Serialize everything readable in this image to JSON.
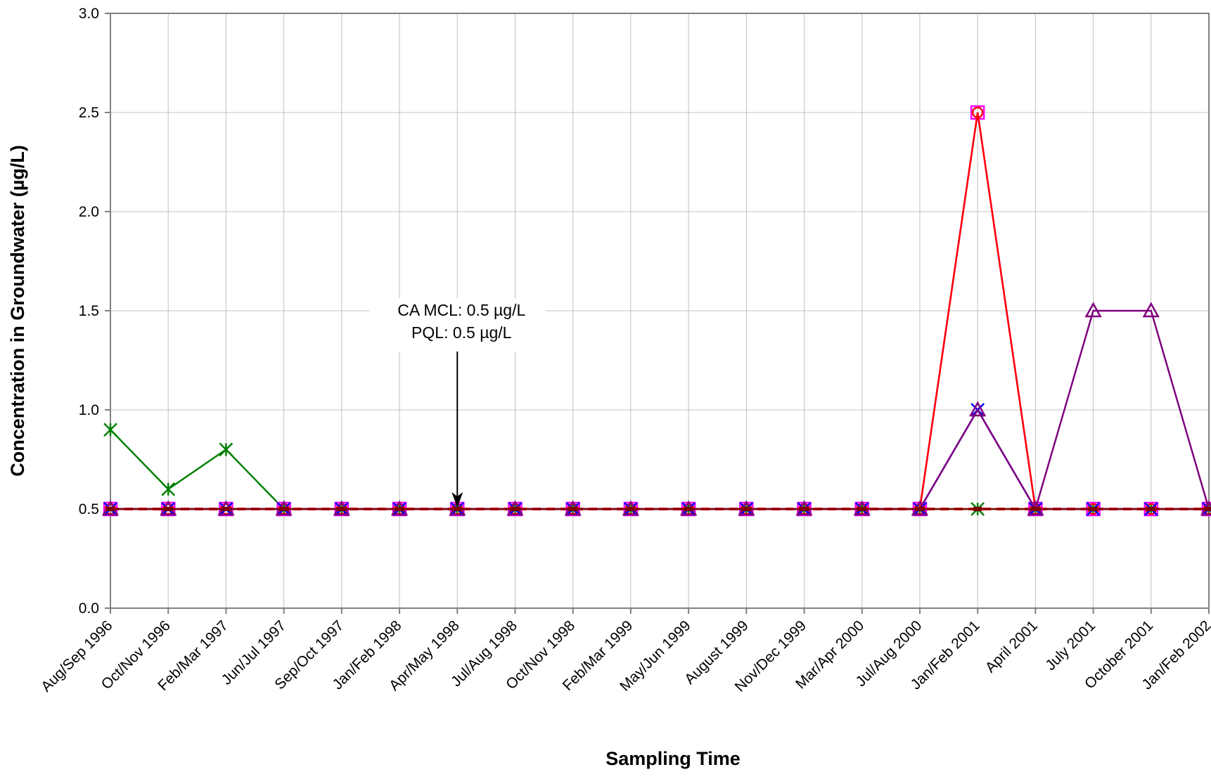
{
  "chart_data": {
    "type": "line",
    "xlabel": "Sampling Time",
    "ylabel": "Concentration in Groundwater (µg/L)",
    "ylim": [
      0,
      3.0
    ],
    "y_ticks": [
      "0.0",
      "0.5",
      "1.0",
      "1.5",
      "2.0",
      "2.5",
      "3.0"
    ],
    "grid": true,
    "categories": [
      "Aug/Sep 1996",
      "Oct/Nov 1996",
      "Feb/Mar 1997",
      "Jun/Jul 1997",
      "Sep/Oct 1997",
      "Jan/Feb 1998",
      "Apr/May 1998",
      "Jul/Aug 1998",
      "Oct/Nov 1998",
      "Feb/Mar 1999",
      "May/Jun 1999",
      "August 1999",
      "Nov/Dec 1999",
      "Mar/Apr 2000",
      "Jul/Aug 2000",
      "Jan/Feb 2001",
      "April 2001",
      "July 2001",
      "October 2001",
      "Jan/Feb 2002"
    ],
    "annotation": {
      "lines": [
        "CA MCL: 0.5 µg/L",
        "PQL: 0.5 µg/L"
      ],
      "points_to": "Apr/May 1998",
      "value": 0.5
    },
    "series": [
      {
        "color": "#008000",
        "marker": "star",
        "values": [
          0.9,
          0.6,
          0.8,
          0.5,
          0.5,
          0.5,
          0.5,
          0.5,
          0.5,
          0.5,
          0.5,
          0.5,
          0.5,
          0.5,
          0.5,
          0.5,
          0.5,
          0.5,
          0.5,
          0.5
        ]
      },
      {
        "color": "#ff00ff",
        "marker": "square",
        "values": [
          0.5,
          0.5,
          0.5,
          0.5,
          0.5,
          0.5,
          0.5,
          0.5,
          0.5,
          0.5,
          0.5,
          0.5,
          0.5,
          0.5,
          0.5,
          2.5,
          0.5,
          0.5,
          0.5,
          0.5
        ]
      },
      {
        "color": "#ff0000",
        "marker": "circle",
        "values": [
          0.5,
          0.5,
          0.5,
          0.5,
          0.5,
          0.5,
          0.5,
          0.5,
          0.5,
          0.5,
          0.5,
          0.5,
          0.5,
          0.5,
          0.5,
          2.5,
          0.5,
          0.5,
          0.5,
          0.5
        ]
      },
      {
        "color": "#0000ff",
        "marker": "x",
        "values": [
          0.5,
          0.5,
          0.5,
          0.5,
          0.5,
          0.5,
          0.5,
          0.5,
          0.5,
          0.5,
          0.5,
          0.5,
          0.5,
          0.5,
          0.5,
          1.0,
          0.5,
          0.5,
          0.5,
          0.5
        ]
      },
      {
        "color": "#800080",
        "marker": "triangle",
        "values": [
          0.5,
          0.5,
          0.5,
          0.5,
          0.5,
          0.5,
          0.5,
          0.5,
          0.5,
          0.5,
          0.5,
          0.5,
          0.5,
          0.5,
          0.5,
          1.0,
          0.5,
          1.5,
          1.5,
          0.5
        ]
      },
      {
        "color": "#800000",
        "marker": "dash",
        "values": [
          0.5,
          0.5,
          0.5,
          0.5,
          0.5,
          0.5,
          0.5,
          0.5,
          0.5,
          0.5,
          0.5,
          0.5,
          0.5,
          0.5,
          0.5,
          0.5,
          0.5,
          0.5,
          0.5,
          0.5
        ]
      }
    ],
    "reference_line": {
      "value": 0.5,
      "color": "#ff0000",
      "style": "dashed"
    }
  }
}
